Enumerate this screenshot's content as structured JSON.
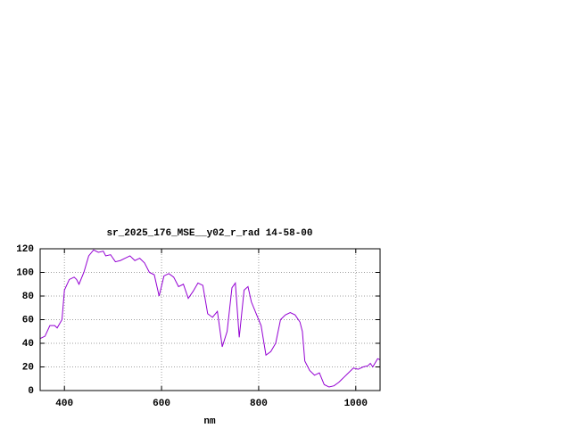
{
  "chart_data": {
    "type": "line",
    "title": "sr_2025_176_MSE__y02_r_rad 14-58-00",
    "x_label": "nm",
    "xlim": [
      350,
      1050
    ],
    "xticks": [
      400,
      600,
      800,
      1000
    ],
    "ylim": [
      0,
      120
    ],
    "yticks": [
      0,
      20,
      40,
      60,
      80,
      100,
      120
    ],
    "grid": true,
    "series": [
      {
        "color": "#9400d3",
        "x": [
          350,
          360,
          370,
          380,
          385,
          395,
          400,
          410,
          420,
          425,
          430,
          440,
          450,
          460,
          470,
          480,
          485,
          495,
          505,
          515,
          525,
          535,
          545,
          555,
          565,
          575,
          585,
          595,
          605,
          615,
          625,
          635,
          645,
          655,
          665,
          675,
          685,
          695,
          705,
          715,
          725,
          735,
          745,
          752,
          760,
          770,
          778,
          785,
          795,
          805,
          815,
          825,
          835,
          845,
          855,
          865,
          875,
          885,
          890,
          895,
          905,
          915,
          925,
          935,
          945,
          955,
          965,
          975,
          985,
          995,
          1005,
          1015,
          1025,
          1030,
          1035,
          1045,
          1050
        ],
        "values": [
          44,
          46,
          55,
          55,
          53,
          60,
          85,
          94,
          96,
          94,
          90,
          100,
          114,
          119,
          117,
          118,
          114,
          115,
          109,
          110,
          112,
          114,
          110,
          112,
          108,
          100,
          98,
          80,
          97,
          99,
          96,
          88,
          90,
          78,
          84,
          91,
          89,
          65,
          62,
          67,
          37,
          50,
          87,
          91,
          45,
          85,
          88,
          75,
          65,
          55,
          30,
          33,
          40,
          60,
          64,
          66,
          64,
          58,
          50,
          25,
          17,
          13,
          15,
          5,
          3,
          4,
          7,
          11,
          15,
          19,
          18,
          20,
          21,
          23,
          20,
          27,
          26
        ]
      }
    ]
  }
}
